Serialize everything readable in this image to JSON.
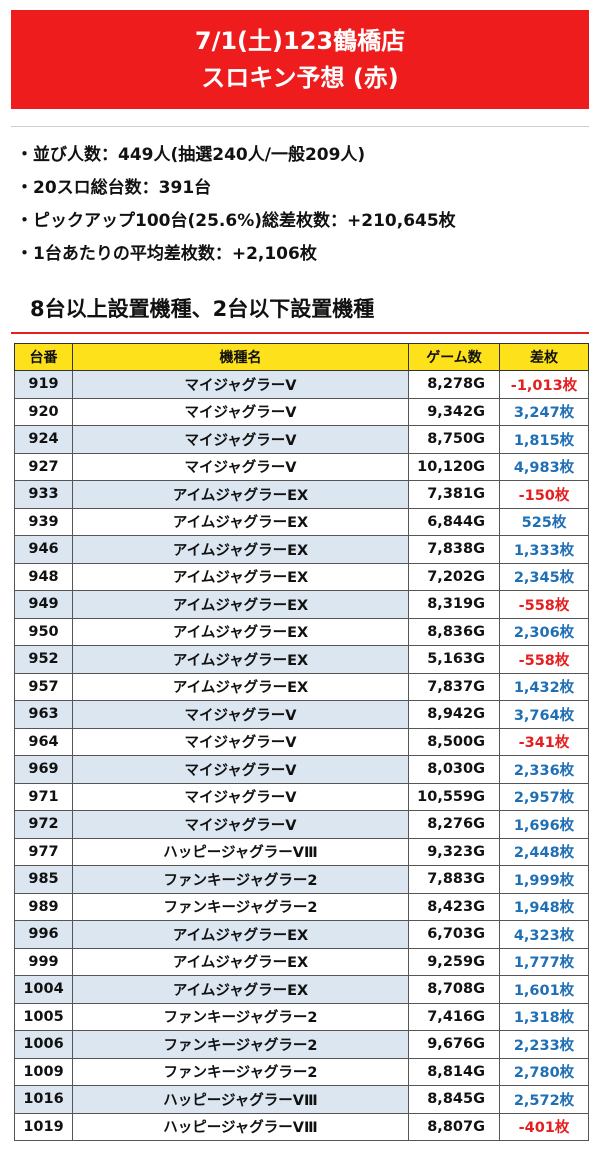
{
  "banner": {
    "title": "7/1(土)123鶴橋店",
    "subtitle": "スロキン予想 (赤)"
  },
  "summary": [
    "・並び人数：449人(抽選240人/一般209人)",
    "・20スロ総台数：391台",
    "・ピックアップ100台(25.6%)総差枚数：+210,645枚",
    "・1台あたりの平均差枚数：+2,106枚"
  ],
  "section_title": "8台以上設置機種、2台以下設置機種",
  "table": {
    "headers": [
      "台番",
      "機種名",
      "ゲーム数",
      "差枚"
    ],
    "rows": [
      {
        "no": "919",
        "name": "マイジャグラーV",
        "games": "8,278G",
        "diff": "-1,013枚",
        "sign": "neg"
      },
      {
        "no": "920",
        "name": "マイジャグラーV",
        "games": "9,342G",
        "diff": "3,247枚",
        "sign": "pos"
      },
      {
        "no": "924",
        "name": "マイジャグラーV",
        "games": "8,750G",
        "diff": "1,815枚",
        "sign": "pos"
      },
      {
        "no": "927",
        "name": "マイジャグラーV",
        "games": "10,120G",
        "diff": "4,983枚",
        "sign": "pos"
      },
      {
        "no": "933",
        "name": "アイムジャグラーEX",
        "games": "7,381G",
        "diff": "-150枚",
        "sign": "neg"
      },
      {
        "no": "939",
        "name": "アイムジャグラーEX",
        "games": "6,844G",
        "diff": "525枚",
        "sign": "pos"
      },
      {
        "no": "946",
        "name": "アイムジャグラーEX",
        "games": "7,838G",
        "diff": "1,333枚",
        "sign": "pos"
      },
      {
        "no": "948",
        "name": "アイムジャグラーEX",
        "games": "7,202G",
        "diff": "2,345枚",
        "sign": "pos"
      },
      {
        "no": "949",
        "name": "アイムジャグラーEX",
        "games": "8,319G",
        "diff": "-558枚",
        "sign": "neg"
      },
      {
        "no": "950",
        "name": "アイムジャグラーEX",
        "games": "8,836G",
        "diff": "2,306枚",
        "sign": "pos"
      },
      {
        "no": "952",
        "name": "アイムジャグラーEX",
        "games": "5,163G",
        "diff": "-558枚",
        "sign": "neg"
      },
      {
        "no": "957",
        "name": "アイムジャグラーEX",
        "games": "7,837G",
        "diff": "1,432枚",
        "sign": "pos"
      },
      {
        "no": "963",
        "name": "マイジャグラーV",
        "games": "8,942G",
        "diff": "3,764枚",
        "sign": "pos"
      },
      {
        "no": "964",
        "name": "マイジャグラーV",
        "games": "8,500G",
        "diff": "-341枚",
        "sign": "neg"
      },
      {
        "no": "969",
        "name": "マイジャグラーV",
        "games": "8,030G",
        "diff": "2,336枚",
        "sign": "pos"
      },
      {
        "no": "971",
        "name": "マイジャグラーV",
        "games": "10,559G",
        "diff": "2,957枚",
        "sign": "pos"
      },
      {
        "no": "972",
        "name": "マイジャグラーV",
        "games": "8,276G",
        "diff": "1,696枚",
        "sign": "pos"
      },
      {
        "no": "977",
        "name": "ハッピージャグラーVⅢ",
        "games": "9,323G",
        "diff": "2,448枚",
        "sign": "pos"
      },
      {
        "no": "985",
        "name": "ファンキージャグラー2",
        "games": "7,883G",
        "diff": "1,999枚",
        "sign": "pos"
      },
      {
        "no": "989",
        "name": "ファンキージャグラー2",
        "games": "8,423G",
        "diff": "1,948枚",
        "sign": "pos"
      },
      {
        "no": "996",
        "name": "アイムジャグラーEX",
        "games": "6,703G",
        "diff": "4,323枚",
        "sign": "pos"
      },
      {
        "no": "999",
        "name": "アイムジャグラーEX",
        "games": "9,259G",
        "diff": "1,777枚",
        "sign": "pos"
      },
      {
        "no": "1004",
        "name": "アイムジャグラーEX",
        "games": "8,708G",
        "diff": "1,601枚",
        "sign": "pos"
      },
      {
        "no": "1005",
        "name": "ファンキージャグラー2",
        "games": "7,416G",
        "diff": "1,318枚",
        "sign": "pos"
      },
      {
        "no": "1006",
        "name": "ファンキージャグラー2",
        "games": "9,676G",
        "diff": "2,233枚",
        "sign": "pos"
      },
      {
        "no": "1009",
        "name": "ファンキージャグラー2",
        "games": "8,814G",
        "diff": "2,780枚",
        "sign": "pos"
      },
      {
        "no": "1016",
        "name": "ハッピージャグラーVⅢ",
        "games": "8,845G",
        "diff": "2,572枚",
        "sign": "pos"
      },
      {
        "no": "1019",
        "name": "ハッピージャグラーVⅢ",
        "games": "8,807G",
        "diff": "-401枚",
        "sign": "neg"
      }
    ]
  },
  "colors": {
    "banner": "#ee1c1c",
    "header": "#fde11a",
    "row_alt": "#dce6f1",
    "positive": "#1f6fb5",
    "negative": "#e51f1f"
  }
}
